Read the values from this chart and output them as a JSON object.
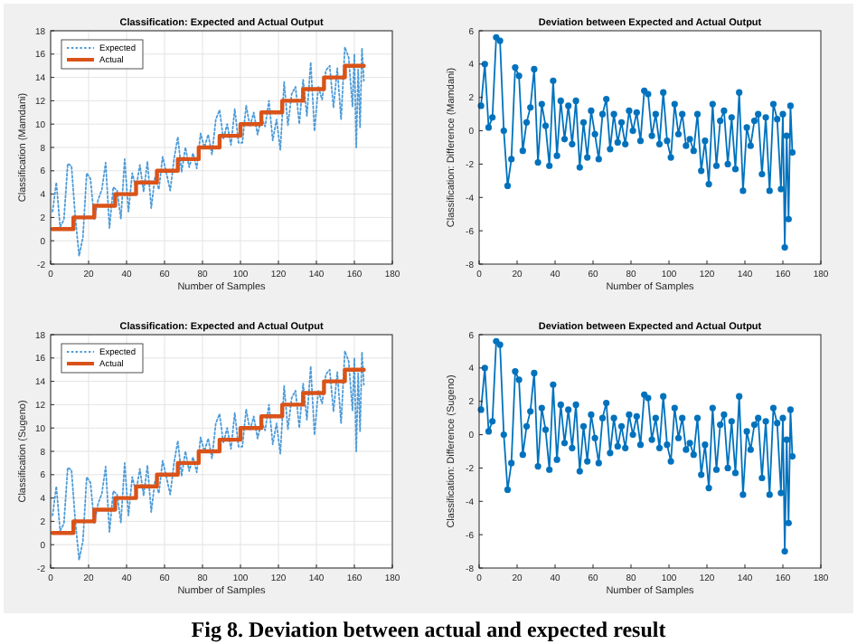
{
  "chart_data": [
    {
      "type": "line",
      "title": "Classification: Expected and Actual Output",
      "xlabel": "Number of Samples",
      "ylabel": "Classification (Mamdani)",
      "xlim": [
        0,
        180
      ],
      "xticks": [
        0,
        20,
        40,
        60,
        80,
        100,
        120,
        140,
        160,
        180
      ],
      "ylim": [
        -2,
        18
      ],
      "yticks": [
        -2,
        0,
        2,
        4,
        6,
        8,
        10,
        12,
        14,
        16,
        18
      ],
      "grid": true,
      "legend": "top left",
      "series": [
        {
          "name": "Expected",
          "color": "#4d9bd8",
          "line_style": "dotted",
          "x": [
            1,
            3,
            5,
            7,
            9,
            11,
            13,
            15,
            17,
            19,
            21,
            23,
            25,
            27,
            29,
            31,
            33,
            35,
            37,
            39,
            41,
            43,
            45,
            47,
            49,
            51,
            53,
            55,
            57,
            59,
            61,
            63,
            65,
            67,
            69,
            71,
            73,
            75,
            77,
            79,
            81,
            83,
            85,
            87,
            89,
            91,
            93,
            95,
            97,
            99,
            101,
            103,
            105,
            107,
            109,
            111,
            113,
            115,
            117,
            119,
            121,
            123,
            125,
            127,
            129,
            131,
            133,
            135,
            137,
            139,
            141,
            143,
            145,
            147,
            149,
            151,
            153,
            155,
            157,
            159,
            160,
            161,
            162,
            163,
            164,
            165
          ],
          "values": [
            2.5,
            5.0,
            1.2,
            1.8,
            6.6,
            6.4,
            2.0,
            -1.3,
            0.3,
            5.8,
            5.3,
            1.8,
            3.5,
            4.4,
            6.7,
            1.1,
            4.6,
            4.3,
            1.9,
            7.0,
            2.5,
            5.8,
            4.5,
            6.5,
            4.2,
            6.8,
            2.8,
            5.5,
            4.4,
            7.2,
            5.8,
            4.3,
            7.0,
            8.9,
            5.9,
            8.0,
            6.3,
            7.5,
            6.2,
            9.2,
            8.0,
            9.1,
            7.4,
            10.4,
            11.2,
            8.7,
            10.0,
            8.2,
            11.3,
            8.4,
            8.4,
            11.6,
            9.8,
            11.0,
            9.1,
            10.5,
            9.8,
            12.0,
            8.6,
            10.4,
            7.8,
            13.6,
            9.9,
            12.6,
            13.2,
            10.0,
            13.8,
            10.7,
            15.3,
            9.4,
            13.2,
            12.1,
            14.6,
            15.0,
            11.4,
            14.8,
            10.4,
            16.6,
            15.7,
            11.5,
            16.0,
            8.0,
            14.7,
            9.7,
            16.5,
            13.7
          ]
        },
        {
          "name": "Actual",
          "type": "step",
          "color": "#d95319",
          "x": [
            1,
            12,
            23,
            34,
            45,
            56,
            67,
            78,
            89,
            100,
            111,
            122,
            133,
            144,
            155,
            165
          ],
          "values": [
            1,
            2,
            3,
            4,
            5,
            6,
            7,
            8,
            9,
            10,
            11,
            12,
            13,
            14,
            15,
            15
          ]
        }
      ]
    },
    {
      "type": "line",
      "title": "Deviation between Expected and Actual Output",
      "xlabel": "Number of Samples",
      "ylabel": "Classification: Difference (Mamdani)",
      "xlim": [
        0,
        180
      ],
      "xticks": [
        0,
        20,
        40,
        60,
        80,
        100,
        120,
        140,
        160,
        180
      ],
      "ylim": [
        -8,
        6
      ],
      "yticks": [
        -8,
        -6,
        -4,
        -2,
        0,
        2,
        4,
        6
      ],
      "grid": false,
      "marker": "circle",
      "series": [
        {
          "color": "#0072bd",
          "x": [
            1,
            3,
            5,
            7,
            9,
            11,
            13,
            15,
            17,
            19,
            21,
            23,
            25,
            27,
            29,
            31,
            33,
            35,
            37,
            39,
            41,
            43,
            45,
            47,
            49,
            51,
            53,
            55,
            57,
            59,
            61,
            63,
            65,
            67,
            69,
            71,
            73,
            75,
            77,
            79,
            81,
            83,
            85,
            87,
            89,
            91,
            93,
            95,
            97,
            99,
            101,
            103,
            105,
            107,
            109,
            111,
            113,
            115,
            117,
            119,
            121,
            123,
            125,
            127,
            129,
            131,
            133,
            135,
            137,
            139,
            141,
            143,
            145,
            147,
            149,
            151,
            153,
            155,
            157,
            159,
            160,
            161,
            162,
            163,
            164,
            165
          ],
          "values": [
            1.5,
            4.0,
            0.2,
            0.8,
            5.6,
            5.4,
            0.0,
            -3.3,
            -1.7,
            3.8,
            3.3,
            -1.2,
            0.5,
            1.4,
            3.7,
            -1.9,
            1.6,
            0.3,
            -2.1,
            3.0,
            -1.5,
            1.8,
            -0.5,
            1.5,
            -0.8,
            1.8,
            -2.2,
            0.5,
            -1.6,
            1.2,
            -0.2,
            -1.7,
            1.0,
            1.9,
            -1.1,
            1.0,
            -0.7,
            0.5,
            -0.8,
            1.2,
            0.0,
            1.1,
            -0.6,
            2.4,
            2.2,
            -0.3,
            1.0,
            -0.8,
            2.3,
            -0.6,
            -1.6,
            1.6,
            -0.2,
            1.0,
            -0.9,
            -0.5,
            -1.2,
            1.0,
            -2.4,
            -0.6,
            -3.2,
            1.6,
            -2.1,
            0.6,
            1.2,
            -2.0,
            0.8,
            -2.3,
            2.3,
            -3.6,
            0.2,
            -0.9,
            0.6,
            1.0,
            -2.6,
            0.8,
            -3.6,
            1.6,
            0.7,
            -3.5,
            1.0,
            -7.0,
            -0.3,
            -5.3,
            1.5,
            -1.3
          ]
        }
      ]
    },
    {
      "type": "line",
      "title": "Classification: Expected and Actual Output",
      "xlabel": "Number of Samples",
      "ylabel": "Classification (Sugeno)",
      "xlim": [
        0,
        180
      ],
      "xticks": [
        0,
        20,
        40,
        60,
        80,
        100,
        120,
        140,
        160,
        180
      ],
      "ylim": [
        -2,
        18
      ],
      "yticks": [
        -2,
        0,
        2,
        4,
        6,
        8,
        10,
        12,
        14,
        16,
        18
      ],
      "grid": true,
      "legend": "top left",
      "series": [
        {
          "name": "Expected",
          "color": "#4d9bd8",
          "line_style": "dotted",
          "x": [
            1,
            3,
            5,
            7,
            9,
            11,
            13,
            15,
            17,
            19,
            21,
            23,
            25,
            27,
            29,
            31,
            33,
            35,
            37,
            39,
            41,
            43,
            45,
            47,
            49,
            51,
            53,
            55,
            57,
            59,
            61,
            63,
            65,
            67,
            69,
            71,
            73,
            75,
            77,
            79,
            81,
            83,
            85,
            87,
            89,
            91,
            93,
            95,
            97,
            99,
            101,
            103,
            105,
            107,
            109,
            111,
            113,
            115,
            117,
            119,
            121,
            123,
            125,
            127,
            129,
            131,
            133,
            135,
            137,
            139,
            141,
            143,
            145,
            147,
            149,
            151,
            153,
            155,
            157,
            159,
            160,
            161,
            162,
            163,
            164,
            165
          ],
          "values": [
            2.5,
            5.0,
            1.2,
            1.8,
            6.6,
            6.4,
            2.0,
            -1.3,
            0.3,
            5.8,
            5.3,
            1.8,
            3.5,
            4.4,
            6.7,
            1.1,
            4.6,
            4.3,
            1.9,
            7.0,
            2.5,
            5.8,
            4.5,
            6.5,
            4.2,
            6.8,
            2.8,
            5.5,
            4.4,
            7.2,
            5.8,
            4.3,
            7.0,
            8.9,
            5.9,
            8.0,
            6.3,
            7.5,
            6.2,
            9.2,
            8.0,
            9.1,
            7.4,
            10.4,
            11.2,
            8.7,
            10.0,
            8.2,
            11.3,
            8.4,
            8.4,
            11.6,
            9.8,
            11.0,
            9.1,
            10.5,
            9.8,
            12.0,
            8.6,
            10.4,
            7.8,
            13.6,
            9.9,
            12.6,
            13.2,
            10.0,
            13.8,
            10.7,
            15.3,
            9.4,
            13.2,
            12.1,
            14.6,
            15.0,
            11.4,
            14.8,
            10.4,
            16.6,
            15.7,
            11.5,
            16.0,
            8.0,
            14.7,
            9.7,
            16.5,
            13.7
          ]
        },
        {
          "name": "Actual",
          "type": "step",
          "color": "#d95319",
          "x": [
            1,
            12,
            23,
            34,
            45,
            56,
            67,
            78,
            89,
            100,
            111,
            122,
            133,
            144,
            155,
            165
          ],
          "values": [
            1,
            2,
            3,
            4,
            5,
            6,
            7,
            8,
            9,
            10,
            11,
            12,
            13,
            14,
            15,
            15
          ]
        }
      ]
    },
    {
      "type": "line",
      "title": "Deviation between Expected and Actual Output",
      "xlabel": "Number of Samples",
      "ylabel": "Classification: Difference (Sugeno)",
      "xlim": [
        0,
        180
      ],
      "xticks": [
        0,
        20,
        40,
        60,
        80,
        100,
        120,
        140,
        160,
        180
      ],
      "ylim": [
        -8,
        6
      ],
      "yticks": [
        -8,
        -6,
        -4,
        -2,
        0,
        2,
        4,
        6
      ],
      "grid": false,
      "marker": "circle",
      "annotations": [
        "Fig 8. Deviation between actual and expected result"
      ],
      "series": [
        {
          "color": "#0072bd",
          "x": [
            1,
            3,
            5,
            7,
            9,
            11,
            13,
            15,
            17,
            19,
            21,
            23,
            25,
            27,
            29,
            31,
            33,
            35,
            37,
            39,
            41,
            43,
            45,
            47,
            49,
            51,
            53,
            55,
            57,
            59,
            61,
            63,
            65,
            67,
            69,
            71,
            73,
            75,
            77,
            79,
            81,
            83,
            85,
            87,
            89,
            91,
            93,
            95,
            97,
            99,
            101,
            103,
            105,
            107,
            109,
            111,
            113,
            115,
            117,
            119,
            121,
            123,
            125,
            127,
            129,
            131,
            133,
            135,
            137,
            139,
            141,
            143,
            145,
            147,
            149,
            151,
            153,
            155,
            157,
            159,
            160,
            161,
            162,
            163,
            164,
            165
          ],
          "values": [
            1.5,
            4.0,
            0.2,
            0.8,
            5.6,
            5.4,
            0.0,
            -3.3,
            -1.7,
            3.8,
            3.3,
            -1.2,
            0.5,
            1.4,
            3.7,
            -1.9,
            1.6,
            0.3,
            -2.1,
            3.0,
            -1.5,
            1.8,
            -0.5,
            1.5,
            -0.8,
            1.8,
            -2.2,
            0.5,
            -1.6,
            1.2,
            -0.2,
            -1.7,
            1.0,
            1.9,
            -1.1,
            1.0,
            -0.7,
            0.5,
            -0.8,
            1.2,
            0.0,
            1.1,
            -0.6,
            2.4,
            2.2,
            -0.3,
            1.0,
            -0.8,
            2.3,
            -0.6,
            -1.6,
            1.6,
            -0.2,
            1.0,
            -0.9,
            -0.5,
            -1.2,
            1.0,
            -2.4,
            -0.6,
            -3.2,
            1.6,
            -2.1,
            0.6,
            1.2,
            -2.0,
            0.8,
            -2.3,
            2.3,
            -3.6,
            0.2,
            -0.9,
            0.6,
            1.0,
            -2.6,
            0.8,
            -3.6,
            1.6,
            0.7,
            -3.5,
            1.0,
            -7.0,
            -0.3,
            -5.3,
            1.5,
            -1.3
          ]
        }
      ]
    }
  ]
}
